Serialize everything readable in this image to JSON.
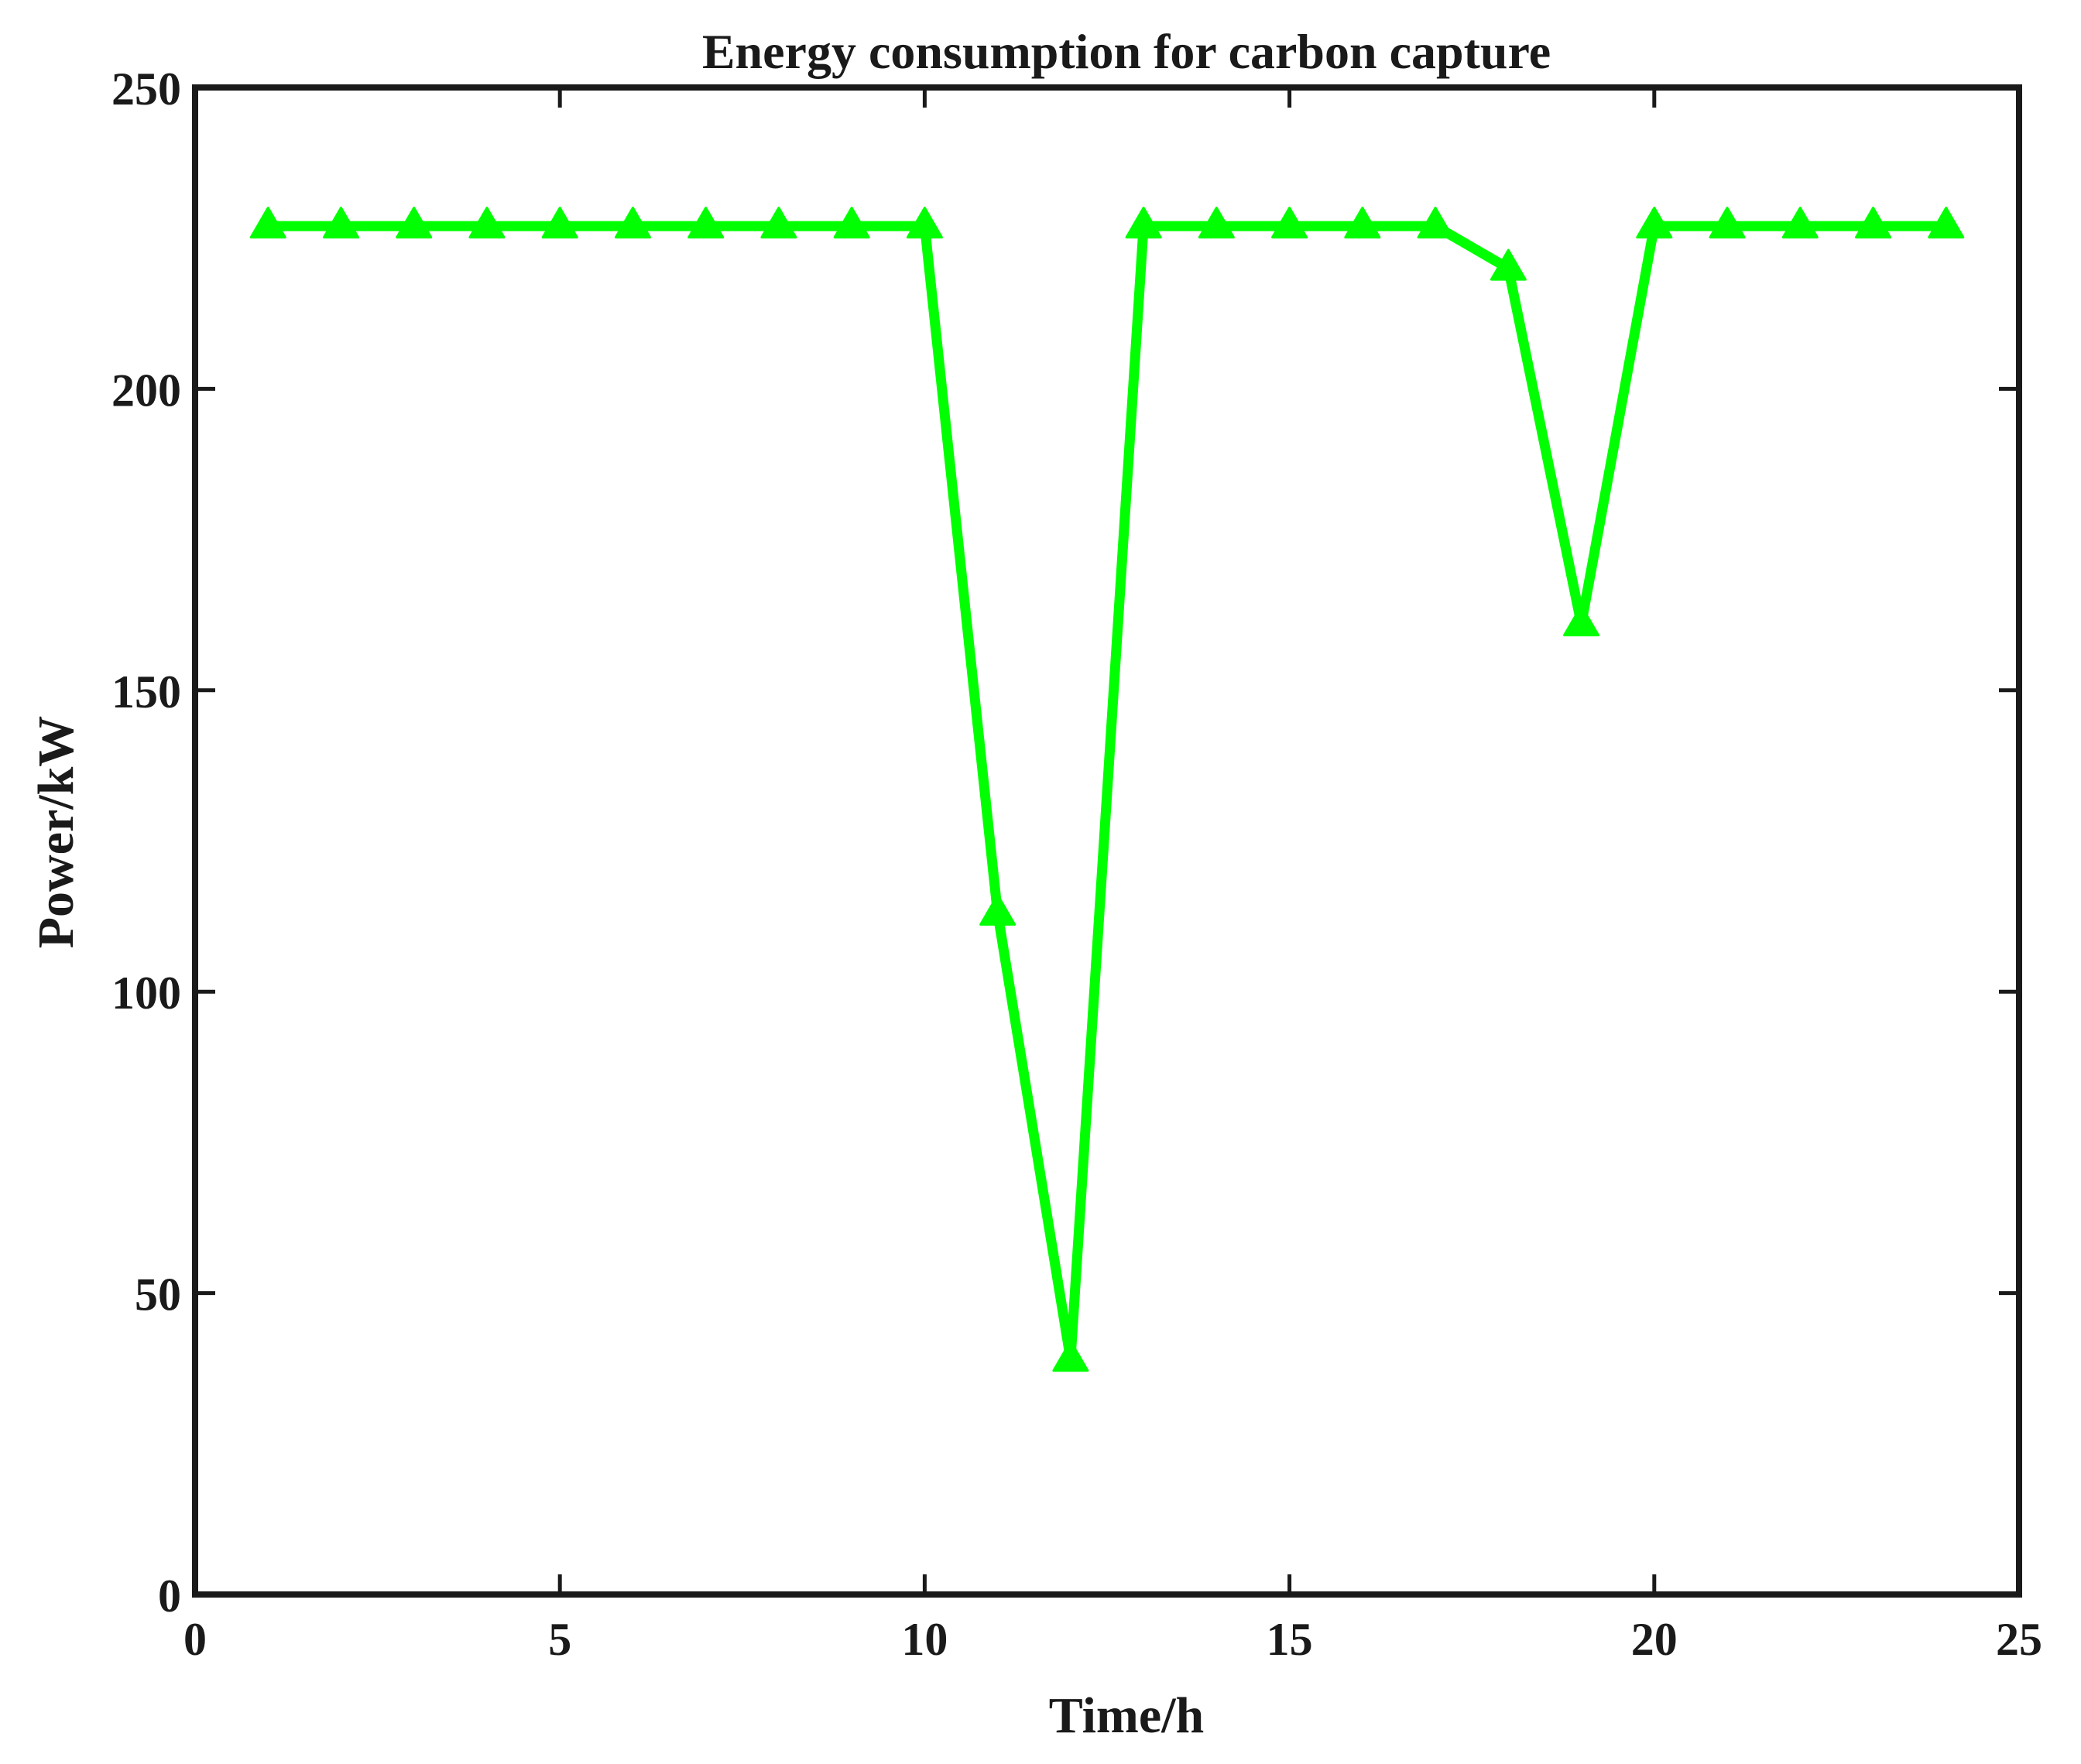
{
  "chart_data": {
    "type": "line",
    "title": "Energy consumption for carbon capture",
    "xlabel": "Time/h",
    "ylabel": "Power/kW",
    "xlim": [
      0,
      25
    ],
    "ylim": [
      0,
      250
    ],
    "xticks": [
      0,
      5,
      10,
      15,
      20,
      25
    ],
    "yticks": [
      0,
      50,
      100,
      150,
      200,
      250
    ],
    "grid": false,
    "series": [
      {
        "marker": "triangle",
        "color": "#00ff00",
        "x": [
          1,
          2,
          3,
          4,
          5,
          6,
          7,
          8,
          9,
          10,
          11,
          12,
          13,
          14,
          15,
          16,
          17,
          18,
          19,
          20,
          21,
          22,
          23,
          24
        ],
        "y": [
          227,
          227,
          227,
          227,
          227,
          227,
          227,
          227,
          227,
          227,
          113,
          39,
          227,
          227,
          227,
          227,
          227,
          220,
          161,
          227,
          227,
          227,
          227,
          227
        ]
      }
    ]
  }
}
